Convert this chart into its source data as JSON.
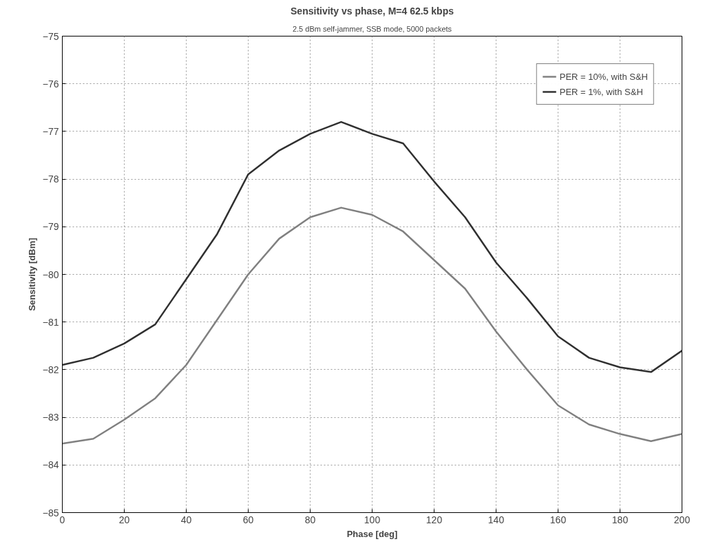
{
  "chart_data": {
    "type": "line",
    "title": "Sensitivity vs phase, M=4 62.5 kbps",
    "subtitle": "2.5 dBm self-jammer, SSB mode, 5000 packets",
    "xlabel": "Phase [deg]",
    "ylabel": "Sensitivity [dBm]",
    "x": [
      0,
      10,
      20,
      30,
      40,
      50,
      60,
      70,
      80,
      90,
      100,
      110,
      120,
      130,
      140,
      150,
      160,
      170,
      180,
      190,
      200
    ],
    "series": [
      {
        "name": "PER = 10%, with S&H",
        "color": "#808080",
        "values": [
          -83.55,
          -83.45,
          -83.05,
          -82.6,
          -81.9,
          -80.95,
          -80.0,
          -79.25,
          -78.8,
          -78.6,
          -78.75,
          -79.1,
          -79.7,
          -80.3,
          -81.2,
          -82.0,
          -82.75,
          -83.15,
          -83.35,
          -83.5,
          -83.35
        ]
      },
      {
        "name": "PER = 1%, with S&H",
        "color": "#303030",
        "values": [
          -81.9,
          -81.75,
          -81.45,
          -81.05,
          -80.1,
          -79.15,
          -77.9,
          -77.4,
          -77.05,
          -76.8,
          -77.05,
          -77.25,
          -78.05,
          -78.8,
          -79.75,
          -80.5,
          -81.3,
          -81.75,
          -81.95,
          -82.05,
          -81.6
        ]
      }
    ],
    "xlim": [
      0,
      200
    ],
    "ylim": [
      -85,
      -75
    ],
    "xticks": [
      0,
      20,
      40,
      60,
      80,
      100,
      120,
      140,
      160,
      180,
      200
    ],
    "yticks": [
      -85,
      -84,
      -83,
      -82,
      -81,
      -80,
      -79,
      -78,
      -77,
      -76,
      -75
    ],
    "grid": true,
    "legend": "top right",
    "line_style": "solid"
  }
}
